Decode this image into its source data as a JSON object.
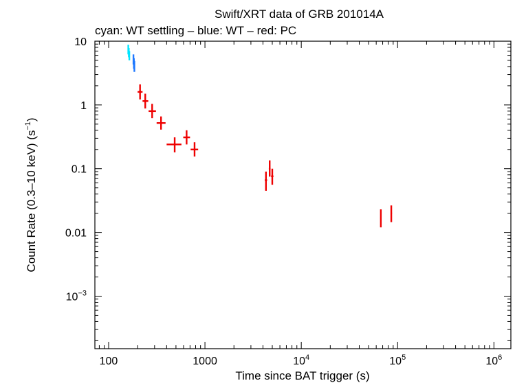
{
  "chart_data": {
    "type": "scatter",
    "title": "Swift/XRT data of GRB 201014A",
    "subtitle": "cyan: WT settling – blue: WT – red: PC",
    "xlabel": "Time since BAT trigger (s)",
    "ylabel": "Count Rate (0.3–10 keV) (s",
    "ylabel_sup": "−1",
    "ylabel_end": ")",
    "xscale": "log",
    "yscale": "log",
    "xlim": [
      72,
      1500000
    ],
    "ylim": [
      0.00015,
      10
    ],
    "x_ticks": [
      {
        "value": 100,
        "label": "100"
      },
      {
        "value": 1000,
        "label": "1000"
      },
      {
        "value": 10000,
        "label": "10",
        "sup": "4"
      },
      {
        "value": 100000,
        "label": "10",
        "sup": "5"
      },
      {
        "value": 1000000,
        "label": "10",
        "sup": "6"
      }
    ],
    "y_ticks": [
      {
        "value": 10,
        "label": "10"
      },
      {
        "value": 1,
        "label": "1"
      },
      {
        "value": 0.1,
        "label": "0.1"
      },
      {
        "value": 0.01,
        "label": "0.01"
      },
      {
        "value": 0.001,
        "label": "10",
        "sup": "−3"
      }
    ],
    "grid": false,
    "series": [
      {
        "color": "#00e5ff",
        "points": [
          {
            "x": 160,
            "y": 7.4,
            "xlo": 159,
            "xhi": 161,
            "ylo": 6.2,
            "yhi": 8.8
          },
          {
            "x": 162,
            "y": 6.6,
            "xlo": 161,
            "xhi": 163,
            "ylo": 5.6,
            "yhi": 7.8
          },
          {
            "x": 164,
            "y": 5.9,
            "xlo": 163,
            "xhi": 165,
            "ylo": 5.0,
            "yhi": 7.0
          }
        ]
      },
      {
        "color": "#1e78ff",
        "points": [
          {
            "x": 181,
            "y": 5.2,
            "xlo": 180,
            "xhi": 182,
            "ylo": 4.3,
            "yhi": 6.2
          },
          {
            "x": 183,
            "y": 4.5,
            "xlo": 182,
            "xhi": 184,
            "ylo": 3.7,
            "yhi": 5.4
          },
          {
            "x": 185,
            "y": 4.0,
            "xlo": 184,
            "xhi": 186,
            "ylo": 3.3,
            "yhi": 4.9
          }
        ]
      },
      {
        "color": "#ee0000",
        "points": [
          {
            "x": 212,
            "y": 1.6,
            "xlo": 200,
            "xhi": 225,
            "ylo": 1.22,
            "yhi": 2.1
          },
          {
            "x": 240,
            "y": 1.15,
            "xlo": 225,
            "xhi": 258,
            "ylo": 0.88,
            "yhi": 1.5
          },
          {
            "x": 283,
            "y": 0.8,
            "xlo": 260,
            "xhi": 310,
            "ylo": 0.62,
            "yhi": 1.04
          },
          {
            "x": 350,
            "y": 0.52,
            "xlo": 315,
            "xhi": 390,
            "ylo": 0.41,
            "yhi": 0.66
          },
          {
            "x": 485,
            "y": 0.24,
            "xlo": 400,
            "xhi": 570,
            "ylo": 0.18,
            "yhi": 0.31
          },
          {
            "x": 645,
            "y": 0.31,
            "xlo": 595,
            "xhi": 700,
            "ylo": 0.24,
            "yhi": 0.4
          },
          {
            "x": 780,
            "y": 0.2,
            "xlo": 710,
            "xhi": 850,
            "ylo": 0.155,
            "yhi": 0.26
          },
          {
            "x": 4300,
            "y": 0.066,
            "xlo": 4180,
            "xhi": 4420,
            "ylo": 0.045,
            "yhi": 0.09
          },
          {
            "x": 4700,
            "y": 0.1,
            "xlo": 4600,
            "xhi": 4800,
            "ylo": 0.075,
            "yhi": 0.135
          },
          {
            "x": 5000,
            "y": 0.076,
            "xlo": 4860,
            "xhi": 5140,
            "ylo": 0.056,
            "yhi": 0.1
          },
          {
            "x": 67000,
            "y": 0.017,
            "xlo": 66000,
            "xhi": 68000,
            "ylo": 0.012,
            "yhi": 0.023
          },
          {
            "x": 86000,
            "y": 0.02,
            "xlo": 84500,
            "xhi": 87500,
            "ylo": 0.0145,
            "yhi": 0.0265
          }
        ]
      }
    ]
  }
}
